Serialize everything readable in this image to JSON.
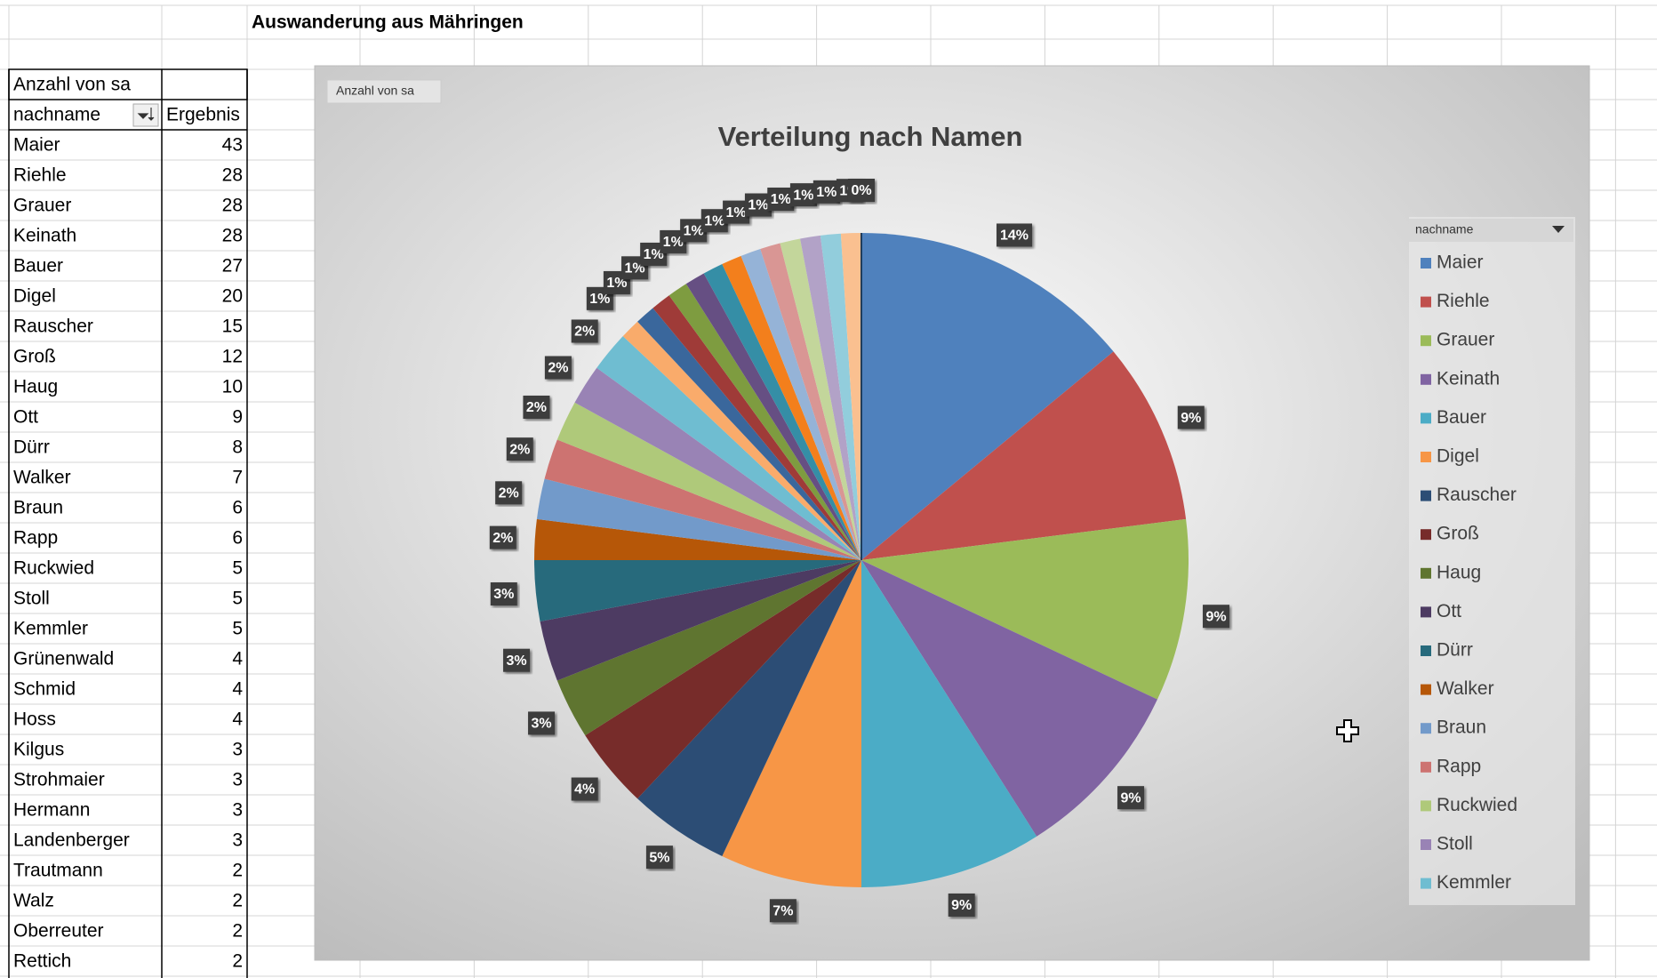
{
  "sheet": {
    "title": "Auswanderung aus Mähringen",
    "pivot": {
      "header": "Anzahl von sa",
      "column_labels": [
        "nachname",
        "Ergebnis"
      ],
      "rows": [
        [
          "Maier",
          "43"
        ],
        [
          "Riehle",
          "28"
        ],
        [
          "Grauer",
          "28"
        ],
        [
          "Keinath",
          "28"
        ],
        [
          "Bauer",
          "27"
        ],
        [
          "Digel",
          "20"
        ],
        [
          "Rauscher",
          "15"
        ],
        [
          "Groß",
          "12"
        ],
        [
          "Haug",
          "10"
        ],
        [
          "Ott",
          "9"
        ],
        [
          "Dürr",
          "8"
        ],
        [
          "Walker",
          "7"
        ],
        [
          "Braun",
          "6"
        ],
        [
          "Rapp",
          "6"
        ],
        [
          "Ruckwied",
          "5"
        ],
        [
          "Stoll",
          "5"
        ],
        [
          "Kemmler",
          "5"
        ],
        [
          "Grünenwald",
          "4"
        ],
        [
          "Schmid",
          "4"
        ],
        [
          "Hoss",
          "4"
        ],
        [
          "Kilgus",
          "3"
        ],
        [
          "Strohmaier",
          "3"
        ],
        [
          "Hermann",
          "3"
        ],
        [
          "Landenberger",
          "3"
        ],
        [
          "Trautmann",
          "2"
        ],
        [
          "Walz",
          "2"
        ],
        [
          "Oberreuter",
          "2"
        ],
        [
          "Rettich",
          "2"
        ]
      ]
    }
  },
  "chart_data": {
    "type": "pie",
    "title": "Verteilung nach Namen",
    "field_button": "Anzahl von sa",
    "legend_title": "nachname",
    "categories": [
      "Maier",
      "Riehle",
      "Grauer",
      "Keinath",
      "Bauer",
      "Digel",
      "Rauscher",
      "Groß",
      "Haug",
      "Ott",
      "Dürr",
      "Walker",
      "Braun",
      "Rapp",
      "Ruckwied",
      "Stoll",
      "Kemmler",
      null,
      null,
      null,
      null,
      null,
      null,
      null,
      null,
      null,
      null,
      null,
      null,
      null,
      null
    ],
    "values": [
      14,
      9,
      9,
      9,
      9,
      7,
      5,
      4,
      3,
      3,
      3,
      2,
      2,
      2,
      2,
      2,
      2,
      1,
      1,
      1,
      1,
      1,
      1,
      1,
      1,
      1,
      1,
      1,
      1,
      1,
      0
    ],
    "value_labels": [
      "14%",
      "9%",
      "9%",
      "9%",
      "9%",
      "7%",
      "5%",
      "4%",
      "3%",
      "3%",
      "3%",
      "2%",
      "2%",
      "2%",
      "2%",
      "2%",
      "2%",
      "1%",
      "1%",
      "1%",
      "1%",
      "1%",
      "1%",
      "1%",
      "1%",
      "1%",
      "1%",
      "1%",
      "1%",
      "1%",
      "0%"
    ],
    "colors": [
      "#4f81bd",
      "#c0504d",
      "#9bbb59",
      "#8064a2",
      "#4bacc6",
      "#f79646",
      "#2c4d75",
      "#772c2a",
      "#5f7530",
      "#4d3b62",
      "#276a7c",
      "#b65708",
      "#729aca",
      "#cd7371",
      "#afc97a",
      "#9983b5",
      "#6fbdd1",
      "#f9ab6b",
      "#3a679c",
      "#9f3b38",
      "#7e9c40",
      "#664f83",
      "#358ea6",
      "#f37f1c",
      "#95b3d7",
      "#d99694",
      "#c3d69b",
      "#b2a2c7",
      "#92cddc",
      "#fac090",
      "#1f3d5c"
    ],
    "legend": "right"
  }
}
